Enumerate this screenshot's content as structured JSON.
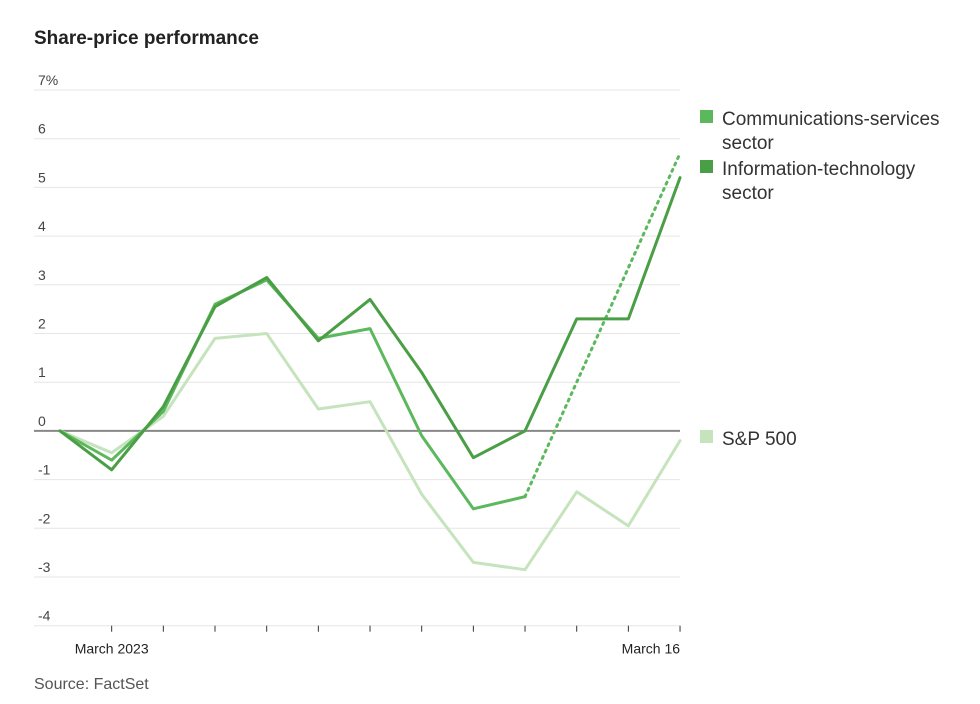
{
  "title": "Share-price performance",
  "source": "Source: FactSet",
  "colors": {
    "communications": "#5cb85c",
    "information_technology": "#4a9e45",
    "sp500": "#c5e4bd",
    "zero_line": "#888888",
    "grid": "#e6e6e6"
  },
  "chart_data": {
    "type": "line",
    "title": "Share-price performance",
    "xlabel": "",
    "ylabel": "",
    "y_ticks": [
      "7%",
      "6",
      "5",
      "4",
      "3",
      "2",
      "1",
      "0",
      "-1",
      "-2",
      "-3",
      "-4"
    ],
    "y_tick_values": [
      7,
      6,
      5,
      4,
      3,
      2,
      1,
      0,
      -1,
      -2,
      -3,
      -4
    ],
    "ylim": [
      -4,
      7
    ],
    "x_tick_labels": [
      {
        "index": 1,
        "label": "March 2023"
      },
      {
        "index": 12,
        "label": "March 16"
      }
    ],
    "x_points": 13,
    "grid": true,
    "legend_position": "right",
    "series": [
      {
        "name": "Communications-services sector",
        "legend_lines": [
          "Communications-services",
          "sector"
        ],
        "color_key": "communications",
        "values": [
          0,
          -0.6,
          0.4,
          2.6,
          3.1,
          1.9,
          2.1,
          -0.1,
          -1.6,
          -1.35,
          null,
          null,
          null
        ],
        "dotted": {
          "from_index": 9,
          "to_index": 12,
          "values": [
            -1.35,
            5.7
          ]
        }
      },
      {
        "name": "Information-technology sector",
        "legend_lines": [
          "Information-technology",
          "sector"
        ],
        "color_key": "information_technology",
        "values": [
          0,
          -0.8,
          0.5,
          2.55,
          3.15,
          1.85,
          2.7,
          1.2,
          -0.55,
          0,
          2.3,
          2.3,
          5.2
        ]
      },
      {
        "name": "S&P 500",
        "legend_lines": [
          "S&P 500"
        ],
        "color_key": "sp500",
        "values": [
          0,
          -0.45,
          0.3,
          1.9,
          2.0,
          0.45,
          0.6,
          -1.3,
          -2.7,
          -2.85,
          -1.25,
          -1.95,
          -0.2
        ]
      }
    ]
  }
}
